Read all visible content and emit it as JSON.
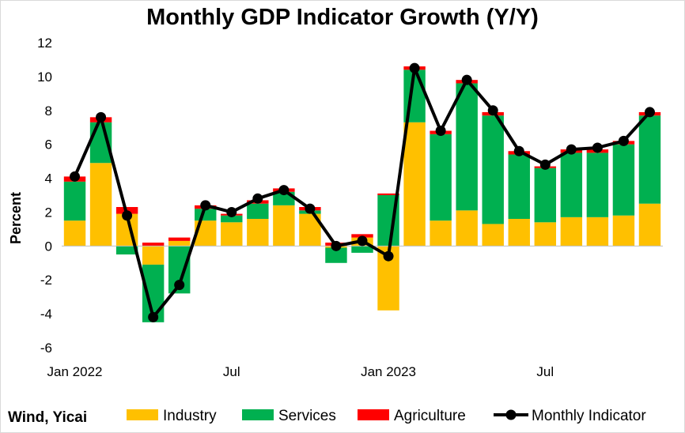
{
  "chart_data": {
    "type": "bar",
    "title": "Monthly GDP Indicator Growth (Y/Y)",
    "ylabel": "Percent",
    "xlabel": "",
    "ylim": [
      -6,
      12
    ],
    "yticks": [
      -6,
      -4,
      -2,
      0,
      2,
      4,
      6,
      8,
      10,
      12
    ],
    "grid": false,
    "legend_position": "bottom",
    "x_tick_labels": [
      {
        "index": 0,
        "label": "Jan 2022"
      },
      {
        "index": 6,
        "label": "Jul"
      },
      {
        "index": 12,
        "label": "Jan 2023"
      },
      {
        "index": 18,
        "label": "Jul"
      }
    ],
    "series": [
      {
        "name": "Industry",
        "type": "stacked-bar",
        "color": "#FFC000",
        "values": [
          1.5,
          4.9,
          1.9,
          -1.1,
          0.3,
          1.5,
          1.4,
          1.6,
          2.4,
          1.9,
          -0.1,
          0.5,
          -3.8,
          7.3,
          1.5,
          2.1,
          1.3,
          1.6,
          1.4,
          1.7,
          1.7,
          1.8,
          2.5
        ]
      },
      {
        "name": "Services",
        "type": "stacked-bar",
        "color": "#00B050",
        "values": [
          2.3,
          2.4,
          -0.5,
          -3.4,
          -2.8,
          0.7,
          0.4,
          0.9,
          0.8,
          0.2,
          -0.9,
          -0.4,
          3.0,
          3.1,
          5.1,
          7.5,
          6.4,
          3.8,
          3.2,
          3.8,
          3.8,
          4.2,
          5.2
        ]
      },
      {
        "name": "Agriculture",
        "type": "stacked-bar",
        "color": "#FF0000",
        "values": [
          0.3,
          0.3,
          0.4,
          0.2,
          0.2,
          0.2,
          0.1,
          0.2,
          0.2,
          0.2,
          0.2,
          0.2,
          0.1,
          0.2,
          0.2,
          0.2,
          0.2,
          0.2,
          0.1,
          0.2,
          0.2,
          0.2,
          0.2
        ]
      },
      {
        "name": "Monthly Indicator",
        "type": "line",
        "color": "#000000",
        "values": [
          4.1,
          7.6,
          1.8,
          -4.2,
          -2.3,
          2.4,
          2.0,
          2.8,
          3.3,
          2.2,
          0.0,
          0.3,
          -0.6,
          10.5,
          6.8,
          9.8,
          8.0,
          5.6,
          4.8,
          5.7,
          5.8,
          6.2,
          7.9
        ]
      }
    ]
  },
  "source_note": "Wind, Yicai"
}
